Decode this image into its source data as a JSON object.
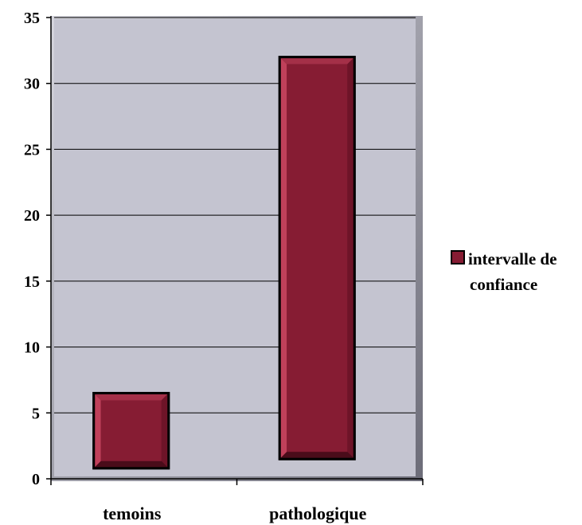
{
  "chart_data": {
    "type": "bar",
    "categories": [
      "temoins",
      "pathologique"
    ],
    "series": [
      {
        "name": "intervalle de confiance",
        "ranges": [
          [
            0.8,
            6.5
          ],
          [
            1.5,
            32.0
          ]
        ]
      }
    ],
    "ylim": [
      0,
      35
    ],
    "yticks": [
      "0",
      "5",
      "10",
      "15",
      "20",
      "25",
      "30",
      "35"
    ],
    "grid": true,
    "legend": {
      "position": "right",
      "lines": [
        "intervalle de",
        "confiance"
      ]
    },
    "colors": {
      "bar": "#861c33",
      "bar_light": "#c0405a",
      "bar_dark": "#5a0f20",
      "plot_bg": "#c4c4d0",
      "plot_frame": "#8a8a96"
    }
  }
}
